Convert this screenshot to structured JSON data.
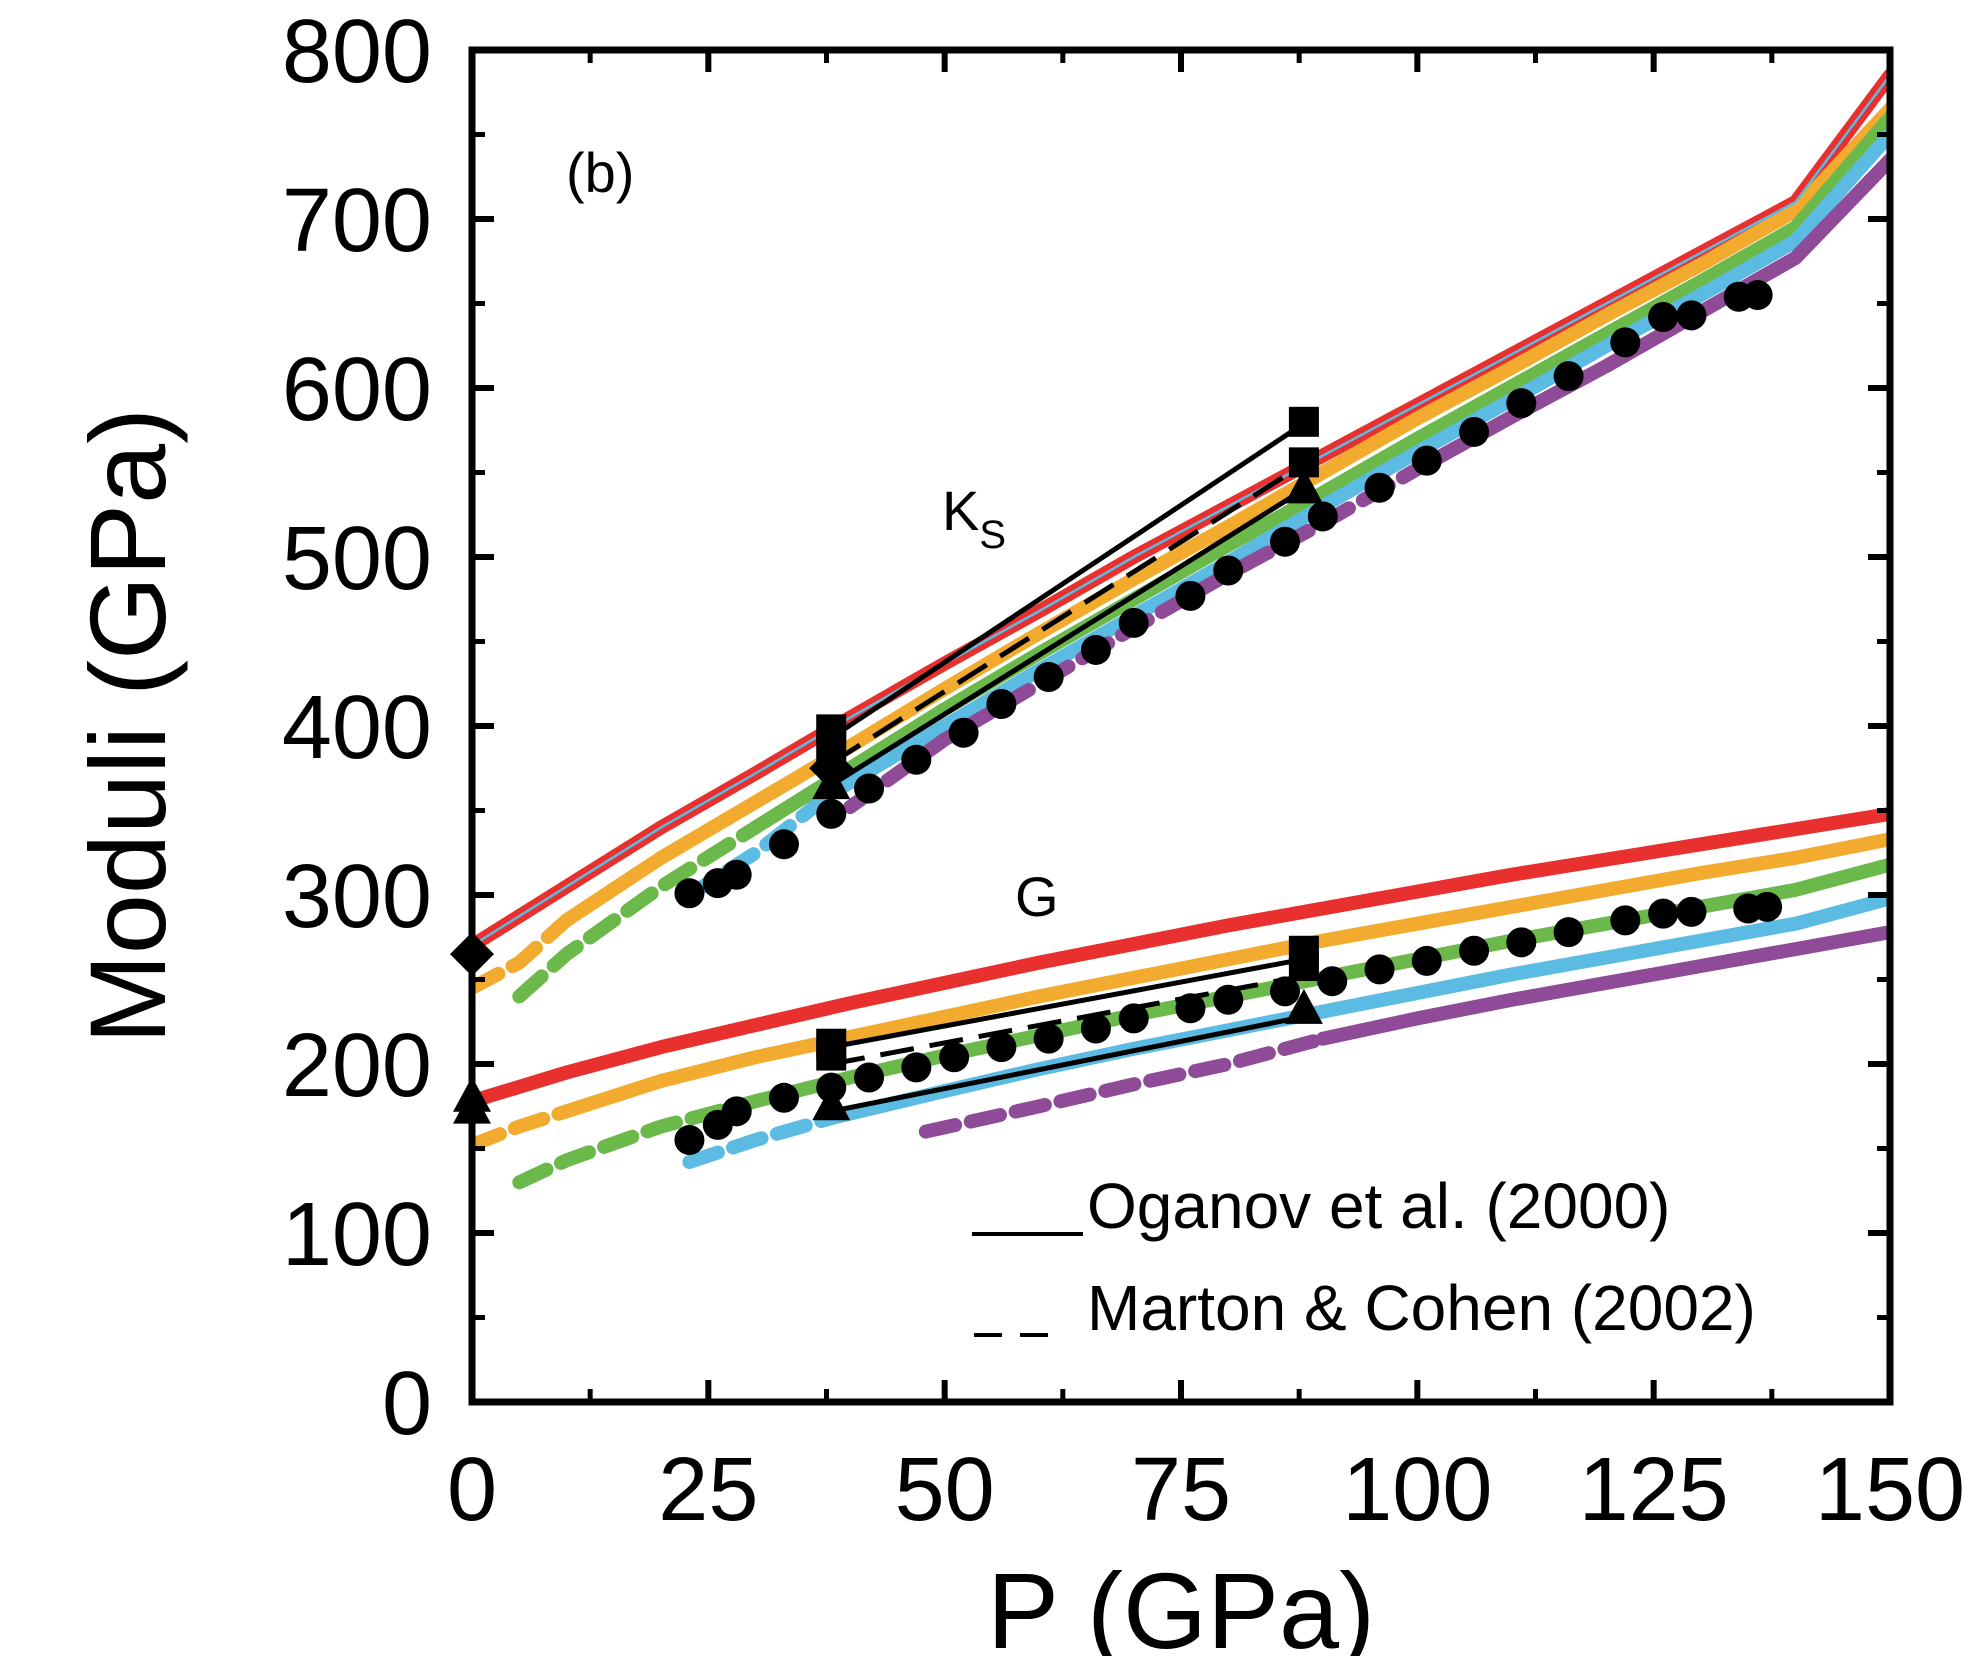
{
  "chart_data": {
    "type": "line",
    "panel_label": "(b)",
    "xlabel": "P (GPa)",
    "ylabel": "Moduli (GPa)",
    "xlim": [
      0,
      150
    ],
    "ylim": [
      0,
      800
    ],
    "x_ticks": [
      0,
      25,
      50,
      75,
      100,
      125,
      150
    ],
    "y_ticks": [
      0,
      100,
      200,
      300,
      400,
      500,
      600,
      700,
      800
    ],
    "grid": false,
    "annotations": [
      {
        "text": "K",
        "subscript": "S",
        "x": 50,
        "y": 500
      },
      {
        "text": "G",
        "x": 60,
        "y": 300
      }
    ],
    "legend": {
      "placement": "bottom-right",
      "entries": [
        {
          "label": "Oganov et al. (2000)",
          "marker": "___",
          "style": "solid"
        },
        {
          "label": "Marton & Cohen (2002)",
          "marker": "_ _",
          "style": "dashed"
        }
      ]
    },
    "colors": {
      "red": "#e8312f",
      "orange": "#f2ab2e",
      "green": "#6ab94a",
      "blue": "#5bbbe3",
      "purple": "#8f4a98",
      "black": "#000000"
    },
    "curves": [
      {
        "modulus": "Ks",
        "color": "red",
        "dashed": [],
        "solid": [
          [
            0,
            270
          ],
          [
            10,
            305
          ],
          [
            20,
            340
          ],
          [
            30,
            372
          ],
          [
            40,
            405
          ],
          [
            50,
            437
          ],
          [
            60,
            468
          ],
          [
            70,
            500
          ],
          [
            80,
            530
          ],
          [
            90,
            560
          ],
          [
            100,
            590
          ],
          [
            110,
            620
          ],
          [
            120,
            650
          ],
          [
            130,
            680
          ],
          [
            140,
            710
          ],
          [
            150,
            785
          ]
        ]
      },
      {
        "modulus": "Ks",
        "color": "orange",
        "dashed": [
          [
            0,
            245
          ],
          [
            5,
            260
          ],
          [
            10,
            285
          ]
        ],
        "solid": [
          [
            10,
            285
          ],
          [
            20,
            322
          ],
          [
            30,
            355
          ],
          [
            40,
            388
          ],
          [
            50,
            422
          ],
          [
            60,
            455
          ],
          [
            70,
            487
          ],
          [
            80,
            518
          ],
          [
            90,
            550
          ],
          [
            100,
            582
          ],
          [
            110,
            612
          ],
          [
            120,
            643
          ],
          [
            130,
            673
          ],
          [
            140,
            705
          ],
          [
            150,
            765
          ]
        ]
      },
      {
        "modulus": "Ks",
        "color": "green",
        "dashed": [
          [
            5,
            240
          ],
          [
            10,
            265
          ],
          [
            20,
            305
          ],
          [
            30,
            340
          ]
        ],
        "solid": [
          [
            30,
            340
          ],
          [
            40,
            375
          ],
          [
            50,
            410
          ],
          [
            60,
            443
          ],
          [
            70,
            475
          ],
          [
            80,
            507
          ],
          [
            90,
            538
          ],
          [
            100,
            570
          ],
          [
            110,
            601
          ],
          [
            120,
            632
          ],
          [
            130,
            663
          ],
          [
            140,
            695
          ],
          [
            150,
            760
          ]
        ]
      },
      {
        "modulus": "Ks",
        "color": "blue",
        "dashed": [
          [
            23,
            300
          ],
          [
            30,
            325
          ],
          [
            38,
            360
          ]
        ],
        "solid": [
          [
            38,
            360
          ],
          [
            50,
            400
          ],
          [
            60,
            433
          ],
          [
            70,
            465
          ],
          [
            80,
            497
          ],
          [
            90,
            530
          ],
          [
            100,
            562
          ],
          [
            110,
            593
          ],
          [
            120,
            625
          ],
          [
            130,
            655
          ],
          [
            140,
            687
          ],
          [
            150,
            750
          ]
        ]
      },
      {
        "modulus": "Ks",
        "color": "purple",
        "dashed": [
          [
            40,
            352
          ],
          [
            50,
            392
          ],
          [
            60,
            425
          ],
          [
            70,
            458
          ],
          [
            80,
            490
          ],
          [
            90,
            520
          ],
          [
            100,
            552
          ]
        ],
        "solid": [
          [
            100,
            552
          ],
          [
            110,
            583
          ],
          [
            120,
            613
          ],
          [
            130,
            645
          ],
          [
            140,
            677
          ],
          [
            150,
            735
          ]
        ]
      },
      {
        "modulus": "G",
        "color": "red",
        "dashed": [],
        "solid": [
          [
            0,
            178
          ],
          [
            10,
            195
          ],
          [
            20,
            210
          ],
          [
            30,
            223
          ],
          [
            40,
            236
          ],
          [
            50,
            248
          ],
          [
            60,
            260
          ],
          [
            70,
            271
          ],
          [
            80,
            282
          ],
          [
            90,
            292
          ],
          [
            100,
            302
          ],
          [
            110,
            312
          ],
          [
            120,
            321
          ],
          [
            130,
            330
          ],
          [
            140,
            339
          ],
          [
            150,
            348
          ]
        ]
      },
      {
        "modulus": "G",
        "color": "orange",
        "dashed": [
          [
            0,
            152
          ],
          [
            5,
            163
          ],
          [
            10,
            172
          ]
        ],
        "solid": [
          [
            10,
            172
          ],
          [
            20,
            190
          ],
          [
            30,
            204
          ],
          [
            40,
            216
          ],
          [
            50,
            228
          ],
          [
            60,
            240
          ],
          [
            70,
            251
          ],
          [
            80,
            262
          ],
          [
            90,
            273
          ],
          [
            100,
            283
          ],
          [
            110,
            293
          ],
          [
            120,
            303
          ],
          [
            130,
            313
          ],
          [
            140,
            322
          ],
          [
            150,
            333
          ]
        ]
      },
      {
        "modulus": "G",
        "color": "green",
        "dashed": [
          [
            5,
            130
          ],
          [
            10,
            143
          ],
          [
            20,
            163
          ],
          [
            30,
            178
          ]
        ],
        "solid": [
          [
            30,
            178
          ],
          [
            40,
            192
          ],
          [
            50,
            205
          ],
          [
            60,
            217
          ],
          [
            70,
            229
          ],
          [
            80,
            240
          ],
          [
            90,
            251
          ],
          [
            100,
            262
          ],
          [
            110,
            273
          ],
          [
            120,
            283
          ],
          [
            130,
            293
          ],
          [
            140,
            303
          ],
          [
            150,
            318
          ]
        ]
      },
      {
        "modulus": "G",
        "color": "blue",
        "dashed": [
          [
            23,
            142
          ],
          [
            30,
            155
          ],
          [
            38,
            168
          ]
        ],
        "solid": [
          [
            38,
            168
          ],
          [
            50,
            184
          ],
          [
            60,
            197
          ],
          [
            70,
            209
          ],
          [
            80,
            220
          ],
          [
            90,
            231
          ],
          [
            100,
            242
          ],
          [
            110,
            253
          ],
          [
            120,
            263
          ],
          [
            130,
            273
          ],
          [
            140,
            283
          ],
          [
            150,
            298
          ]
        ]
      },
      {
        "modulus": "G",
        "color": "purple",
        "dashed": [
          [
            48,
            160
          ],
          [
            60,
            175
          ],
          [
            70,
            188
          ],
          [
            80,
            200
          ],
          [
            90,
            215
          ]
        ],
        "solid": [
          [
            90,
            215
          ],
          [
            100,
            227
          ],
          [
            110,
            238
          ],
          [
            120,
            248
          ],
          [
            130,
            258
          ],
          [
            140,
            268
          ],
          [
            150,
            278
          ]
        ]
      }
    ],
    "black_lines": [
      {
        "style": "solid",
        "points": [
          [
            38,
            393
          ],
          [
            88,
            579
          ]
        ]
      },
      {
        "style": "solid",
        "points": [
          [
            38,
            365
          ],
          [
            88,
            540
          ]
        ]
      },
      {
        "style": "dashed",
        "points": [
          [
            38,
            378
          ],
          [
            88,
            555
          ]
        ]
      },
      {
        "style": "solid",
        "points": [
          [
            38,
            210
          ],
          [
            88,
            262
          ]
        ]
      },
      {
        "style": "solid",
        "points": [
          [
            38,
            172
          ],
          [
            88,
            228
          ]
        ]
      },
      {
        "style": "dashed",
        "points": [
          [
            38,
            200
          ],
          [
            88,
            252
          ]
        ]
      }
    ],
    "square_markers": [
      [
        38,
        398
      ],
      [
        38,
        388
      ],
      [
        88,
        580
      ],
      [
        88,
        556
      ],
      [
        38,
        212
      ],
      [
        38,
        205
      ],
      [
        88,
        267
      ],
      [
        88,
        258
      ]
    ],
    "triangle_markers": [
      [
        38,
        365
      ],
      [
        88,
        540
      ],
      [
        38,
        175
      ],
      [
        88,
        232
      ],
      [
        0,
        180
      ],
      [
        0,
        173
      ]
    ],
    "diamond_markers": [
      [
        0,
        265
      ],
      [
        38,
        375
      ]
    ],
    "circle_markers": [
      [
        23,
        301
      ],
      [
        26,
        307
      ],
      [
        28,
        312
      ],
      [
        33,
        330
      ],
      [
        38,
        348
      ],
      [
        42,
        363
      ],
      [
        47,
        380
      ],
      [
        52,
        396
      ],
      [
        56,
        413
      ],
      [
        61,
        429
      ],
      [
        66,
        445
      ],
      [
        70,
        461
      ],
      [
        76,
        477
      ],
      [
        80,
        492
      ],
      [
        86,
        509
      ],
      [
        90,
        524
      ],
      [
        96,
        541
      ],
      [
        101,
        557
      ],
      [
        106,
        574
      ],
      [
        111,
        591
      ],
      [
        116,
        607
      ],
      [
        122,
        627
      ],
      [
        126,
        642
      ],
      [
        129,
        643
      ],
      [
        134,
        654
      ],
      [
        136,
        655
      ],
      [
        23,
        155
      ],
      [
        26,
        164
      ],
      [
        28,
        172
      ],
      [
        33,
        180
      ],
      [
        38,
        186
      ],
      [
        42,
        192
      ],
      [
        47,
        198
      ],
      [
        51,
        204
      ],
      [
        56,
        210
      ],
      [
        61,
        215
      ],
      [
        66,
        221
      ],
      [
        70,
        227
      ],
      [
        76,
        233
      ],
      [
        80,
        238
      ],
      [
        86,
        243
      ],
      [
        91,
        249
      ],
      [
        96,
        256
      ],
      [
        101,
        261
      ],
      [
        106,
        267
      ],
      [
        111,
        272
      ],
      [
        116,
        278
      ],
      [
        122,
        285
      ],
      [
        126,
        289
      ],
      [
        129,
        290
      ],
      [
        135,
        292
      ],
      [
        137,
        293
      ]
    ]
  }
}
